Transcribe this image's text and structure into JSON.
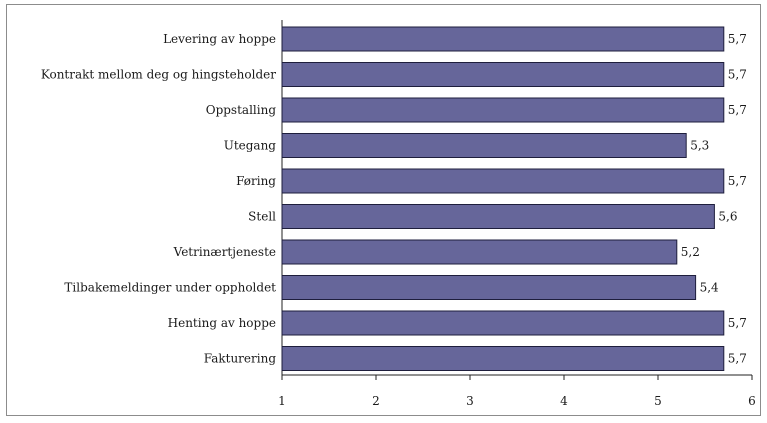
{
  "chart_data": {
    "type": "bar",
    "orientation": "horizontal",
    "categories": [
      "Levering av hoppe",
      "Kontrakt mellom deg og hingsteholder",
      "Oppstalling",
      "Utegang",
      "Føring",
      "Stell",
      "Vetrinærtjeneste",
      "Tilbakemeldinger under oppholdet",
      "Henting av hoppe",
      "Fakturering"
    ],
    "values": [
      5.7,
      5.7,
      5.7,
      5.3,
      5.7,
      5.6,
      5.2,
      5.4,
      5.7,
      5.7
    ],
    "value_labels": [
      "5,7",
      "5,7",
      "5,7",
      "5,3",
      "5,7",
      "5,6",
      "5,2",
      "5,4",
      "5,7",
      "5,7"
    ],
    "title": "",
    "xlabel": "",
    "ylabel": "",
    "xlim": [
      1,
      6
    ],
    "xticks": [
      "1",
      "2",
      "3",
      "4",
      "5",
      "6"
    ],
    "grid": false,
    "legend": "none",
    "bar_color": "#66669a",
    "bar_edge_color": "#1e1e3c"
  }
}
